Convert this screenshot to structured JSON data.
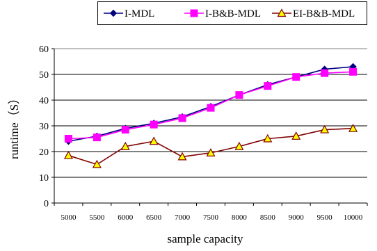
{
  "chart_data": {
    "type": "line",
    "title": "",
    "xlabel": "sample capacity",
    "ylabel": "runtime（S）",
    "categories": [
      "5000",
      "5500",
      "6000",
      "6500",
      "7000",
      "7500",
      "8000",
      "8500",
      "9000",
      "9500",
      "10000"
    ],
    "ylim": [
      0,
      60
    ],
    "yticks": [
      "0",
      "10",
      "20",
      "30",
      "40",
      "50",
      "60"
    ],
    "grid": true,
    "legend_position": "top",
    "series": [
      {
        "name": "I-MDL",
        "color": "#000080",
        "marker": "diamond",
        "values": [
          24,
          26,
          29,
          31,
          33.5,
          37.5,
          42,
          46,
          49,
          52,
          53
        ]
      },
      {
        "name": "I-B&B-MDL",
        "color": "#ff00ff",
        "marker": "square",
        "values": [
          25,
          25.5,
          28.5,
          30.5,
          33,
          37,
          42,
          45.5,
          49,
          50.5,
          51
        ]
      },
      {
        "name": "EI-B&B-MDL",
        "color": "#800000",
        "marker": "triangle",
        "marker_fill": "#ffff00",
        "values": [
          18.5,
          15,
          22,
          24,
          18,
          19.5,
          22,
          25,
          26,
          28.5,
          29
        ]
      }
    ]
  }
}
